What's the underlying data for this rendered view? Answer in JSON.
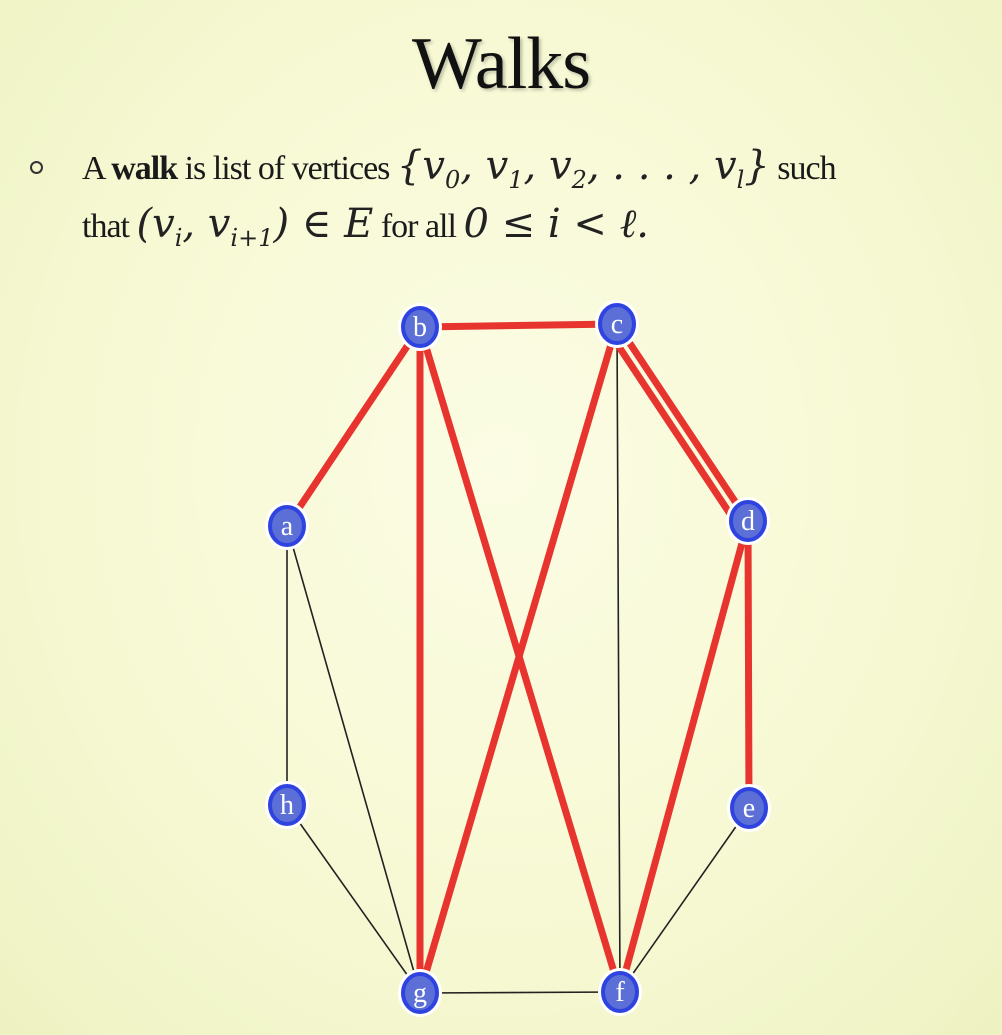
{
  "slide": {
    "title": "Walks",
    "bullet": {
      "prefix": "A ",
      "term": "walk",
      "after_term": " is list of vertices ",
      "math_set": "{v0, v1, v2, . . . , vl}",
      "after_set": " such",
      "line2_prefix": "that ",
      "math_edge": "(vi, vi+1) ∈ E",
      "line2_mid": " for all ",
      "math_range": "0 ≤ i < ℓ."
    }
  },
  "graph": {
    "vertices": [
      {
        "id": "a",
        "label": "a"
      },
      {
        "id": "b",
        "label": "b"
      },
      {
        "id": "c",
        "label": "c"
      },
      {
        "id": "d",
        "label": "d"
      },
      {
        "id": "e",
        "label": "e"
      },
      {
        "id": "f",
        "label": "f"
      },
      {
        "id": "g",
        "label": "g"
      },
      {
        "id": "h",
        "label": "h"
      }
    ],
    "edges": [
      {
        "from": "a",
        "to": "h",
        "highlighted": false
      },
      {
        "from": "a",
        "to": "g",
        "highlighted": false
      },
      {
        "from": "h",
        "to": "g",
        "highlighted": false
      },
      {
        "from": "g",
        "to": "f",
        "highlighted": false
      },
      {
        "from": "c",
        "to": "f",
        "highlighted": false
      },
      {
        "from": "e",
        "to": "f",
        "highlighted": false
      },
      {
        "from": "a",
        "to": "b",
        "highlighted": true
      },
      {
        "from": "b",
        "to": "c",
        "highlighted": true
      },
      {
        "from": "b",
        "to": "g",
        "highlighted": true
      },
      {
        "from": "b",
        "to": "f",
        "highlighted": true
      },
      {
        "from": "c",
        "to": "g",
        "highlighted": true
      },
      {
        "from": "c",
        "to": "d",
        "highlighted": true
      },
      {
        "from": "c",
        "to": "d",
        "highlighted": true
      },
      {
        "from": "d",
        "to": "e",
        "highlighted": true
      },
      {
        "from": "d",
        "to": "f",
        "highlighted": true
      }
    ],
    "colors": {
      "walk_edge": "#e8342f",
      "plain_edge": "#222222",
      "vertex_fill": "#5b6fd6",
      "vertex_ring": "#2f43e0",
      "vertex_text": "#ffffff"
    }
  }
}
